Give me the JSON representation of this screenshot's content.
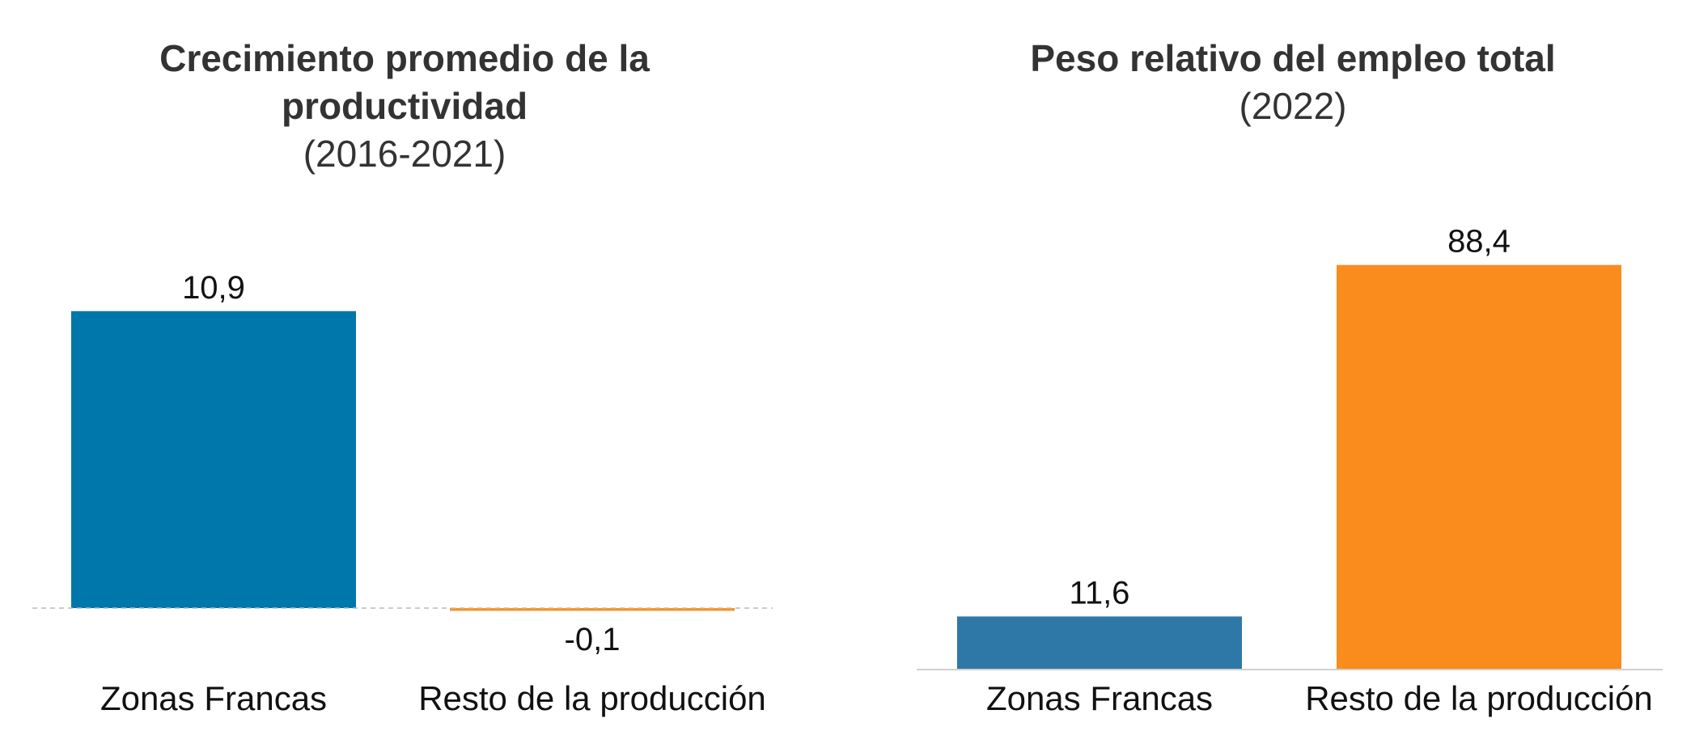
{
  "chart_data": [
    {
      "type": "bar",
      "title_lines": [
        "Crecimiento promedio de la",
        "productividad"
      ],
      "subtitle": "(2016-2021)",
      "categories": [
        "Zonas Francas",
        "Resto de la producción"
      ],
      "values": [
        10.9,
        -0.1
      ],
      "value_labels": [
        "10,9",
        "-0,1"
      ],
      "colors": [
        "#0077AA",
        "#F7941D"
      ],
      "ylim": [
        -1.9,
        13
      ],
      "zero_line": "dashed"
    },
    {
      "type": "bar",
      "title_lines": [
        "Peso relativo del empleo total"
      ],
      "subtitle": "(2022)",
      "categories": [
        "Zonas Francas",
        "Resto de la producción"
      ],
      "values": [
        11.6,
        88.4
      ],
      "value_labels": [
        "11,6",
        "88,4"
      ],
      "colors": [
        "#2E78A8",
        "#F98C1C"
      ],
      "ylim": [
        0,
        100
      ],
      "zero_line": "solid"
    }
  ]
}
